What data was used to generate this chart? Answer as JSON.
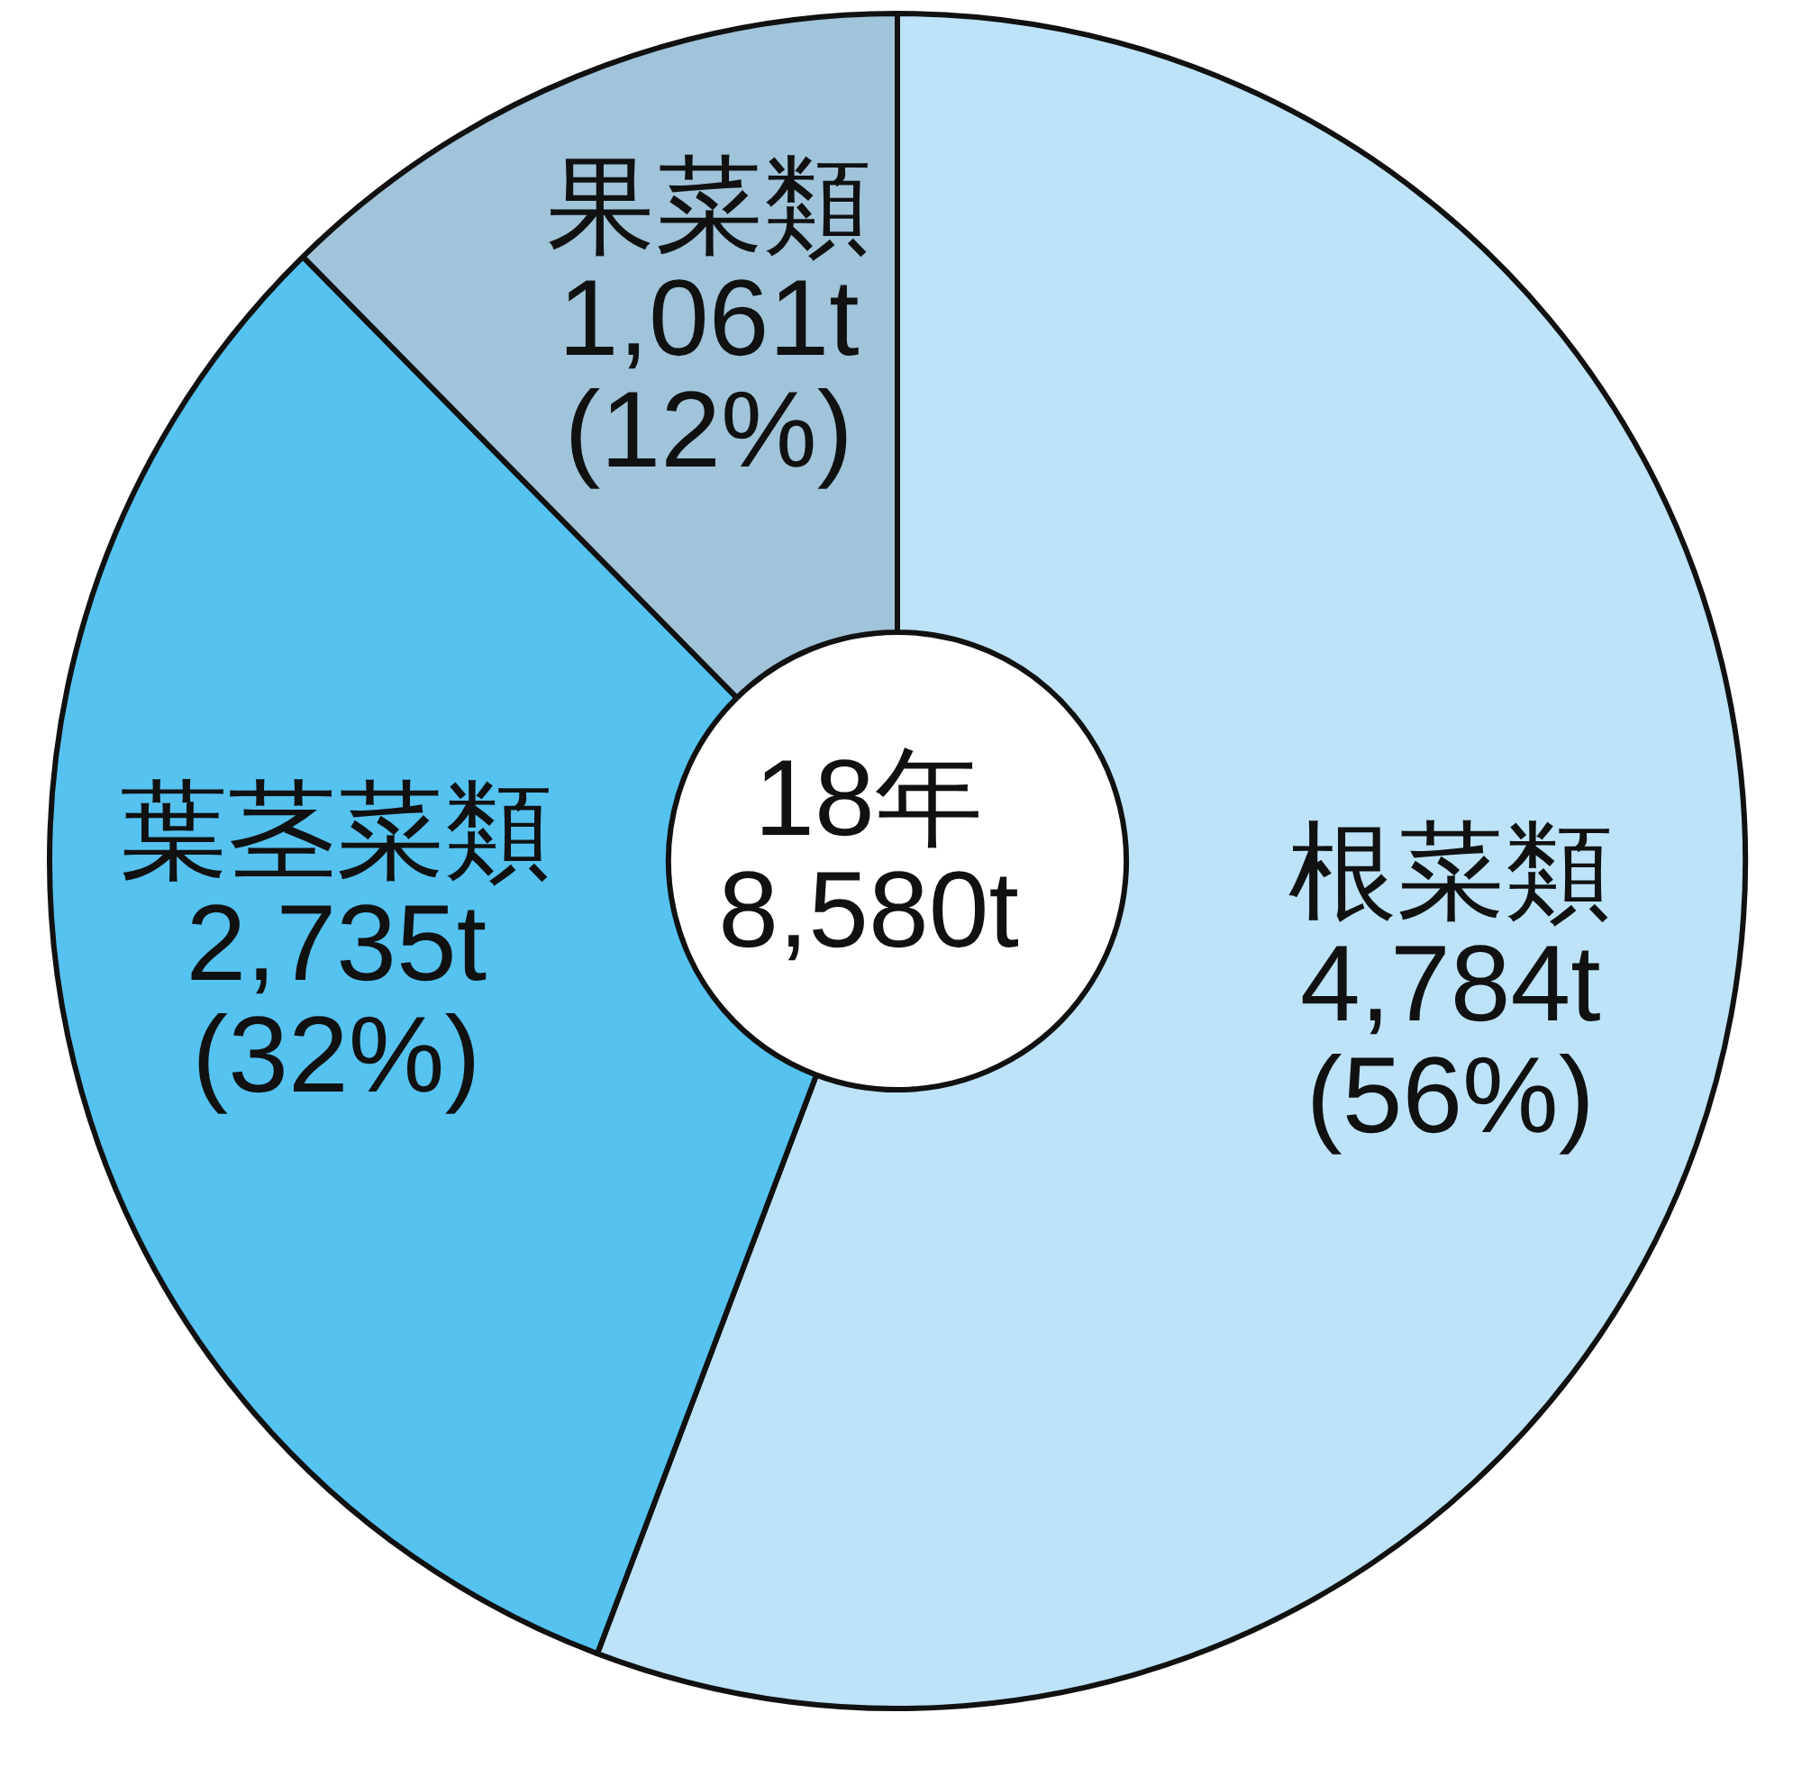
{
  "chart_data": {
    "type": "donut",
    "categories": [
      "根菜類",
      "葉茎菜類",
      "果菜類"
    ],
    "values": [
      4784,
      2735,
      1061
    ],
    "colors": [
      "#bce3f8",
      "#55c2f0",
      "#a0c4d9"
    ],
    "value_labels": [
      "4,784t",
      "2,735t",
      "1,061t"
    ],
    "annotations": [
      {
        "text": "(56%)",
        "x": "根菜類"
      },
      {
        "text": "(32%)",
        "x": "葉茎菜類"
      },
      {
        "text": "(12%)",
        "x": "果菜類"
      },
      "18年\n8,580t"
    ]
  }
}
